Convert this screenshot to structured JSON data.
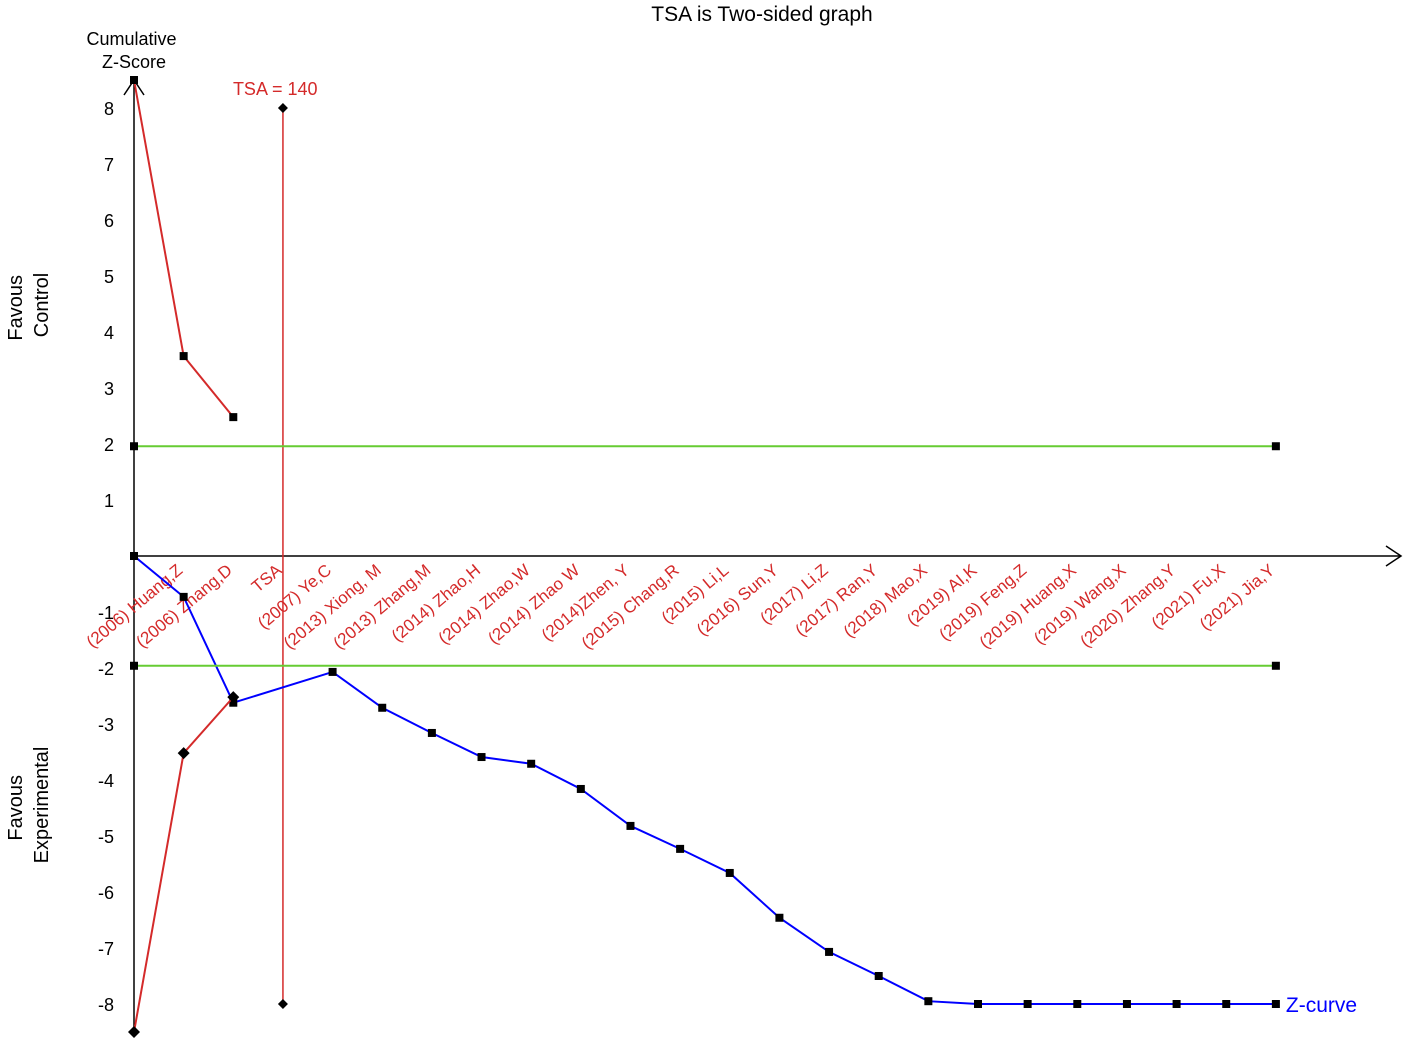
{
  "chart_data": {
    "type": "line",
    "title": "TSA is Two-sided graph",
    "y_label": [
      "Cumulative",
      "Z-Score"
    ],
    "upper_label": [
      "Favous",
      "Control"
    ],
    "lower_label": [
      "Favous",
      "Experimental"
    ],
    "categories": [
      null,
      "(2006) Huang,Z",
      "(2006) Zhang,D",
      "TSA",
      "(2007) Ye,C",
      "(2013) Xiong, M",
      "(2013) Zhang,M",
      "(2014) Zhao,H",
      "(2014) Zhao,W",
      "(2014) Zhao W",
      "(2014)Zhen, Y",
      "(2015) Chang,R",
      "(2015) Li,L",
      "(2016) Sun,Y",
      "(2017) Li,Z",
      "(2017) Ran,Y",
      "(2018) Mao,X",
      "(2019) AI,K",
      "(2019) Feng,Z",
      "(2019) Huang,X",
      "(2019) Wang,X",
      "(2020) Zhang,Y",
      "(2021) Fu,X",
      "(2021) Jia,Y"
    ],
    "label_color": "#d42a2a",
    "xlim": [
      0,
      25.5
    ],
    "ylim": [
      -8.5,
      8.5
    ],
    "yticks": [
      -8,
      -7,
      -6,
      -5,
      -4,
      -3,
      -2,
      -1,
      1,
      2,
      3,
      4,
      5,
      6,
      7,
      8
    ],
    "grid": false,
    "series": [
      {
        "name": "Z-curve",
        "color": "#0000ff",
        "marker": "square",
        "x": [
          0,
          1,
          2,
          4,
          5,
          6,
          7,
          8,
          9,
          10,
          11,
          12,
          13,
          14,
          15,
          16,
          17,
          18,
          19,
          20,
          21,
          22,
          23
        ],
        "values": [
          0,
          -0.73,
          -2.62,
          -2.07,
          -2.71,
          -3.16,
          -3.59,
          -3.71,
          -4.16,
          -4.82,
          -5.23,
          -5.66,
          -6.46,
          -7.07,
          -7.5,
          -7.95,
          -8,
          -8,
          -8,
          -8,
          -8,
          -8,
          -8
        ]
      },
      {
        "color": "#d42a2a",
        "marker": "square",
        "x": [
          0,
          1,
          2
        ],
        "values": [
          8.5,
          3.57,
          2.48
        ]
      },
      {
        "color": "#d42a2a",
        "marker": "diamond",
        "x": [
          0,
          1,
          2
        ],
        "values": [
          -8.5,
          -3.52,
          -2.52
        ]
      },
      {
        "color": "#66cc33",
        "marker": "square",
        "x": [
          0,
          23
        ],
        "values": [
          1.96,
          1.96
        ]
      },
      {
        "color": "#66cc33",
        "marker": "square",
        "x": [
          0,
          23
        ],
        "values": [
          -1.96,
          -1.96
        ]
      }
    ],
    "tsa": {
      "label": "TSA = 140",
      "color": "#d42a2a",
      "x": 3,
      "values": [
        8,
        -8
      ]
    }
  }
}
